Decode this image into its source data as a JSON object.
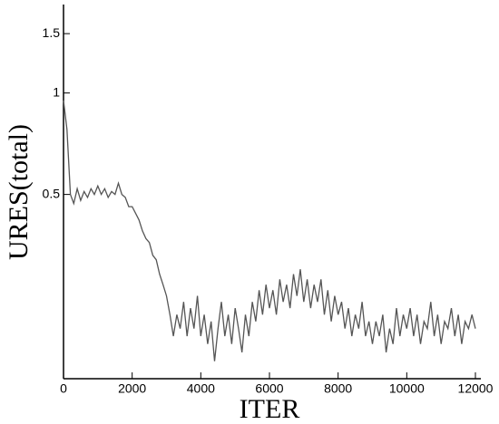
{
  "chart_data": {
    "type": "line",
    "x_label": "ITER",
    "y_label": "URES(total)",
    "xlim": [
      0,
      12000
    ],
    "xticks": [
      0,
      2000,
      4000,
      6000,
      8000,
      10000,
      12000
    ],
    "ylim": [
      0.142,
      1.83
    ],
    "yticks": [
      0.5,
      1,
      1.5
    ],
    "ylog": true,
    "color": "#555555",
    "x": [
      0,
      100,
      200,
      300,
      400,
      500,
      600,
      700,
      800,
      900,
      1000,
      1100,
      1200,
      1300,
      1400,
      1500,
      1600,
      1700,
      1800,
      1900,
      2000,
      2100,
      2200,
      2300,
      2400,
      2500,
      2600,
      2700,
      2800,
      2900,
      3000,
      3100,
      3200,
      3300,
      3400,
      3500,
      3600,
      3700,
      3800,
      3900,
      4000,
      4100,
      4200,
      4300,
      4400,
      4500,
      4600,
      4700,
      4800,
      4900,
      5000,
      5100,
      5200,
      5300,
      5400,
      5500,
      5600,
      5700,
      5800,
      5900,
      6000,
      6100,
      6200,
      6300,
      6400,
      6500,
      6600,
      6700,
      6800,
      6900,
      7000,
      7100,
      7200,
      7300,
      7400,
      7500,
      7600,
      7700,
      7800,
      7900,
      8000,
      8100,
      8200,
      8300,
      8400,
      8500,
      8600,
      8700,
      8800,
      8900,
      9000,
      9100,
      9200,
      9300,
      9400,
      9500,
      9600,
      9700,
      9800,
      9900,
      10000,
      10100,
      10200,
      10300,
      10400,
      10500,
      10600,
      10700,
      10800,
      10900,
      11000,
      11100,
      11200,
      11300,
      11400,
      11500,
      11600,
      11700,
      11800,
      11900,
      12000
    ],
    "values": [
      0.95,
      0.78,
      0.5,
      0.47,
      0.52,
      0.48,
      0.51,
      0.49,
      0.52,
      0.5,
      0.53,
      0.5,
      0.52,
      0.49,
      0.51,
      0.5,
      0.54,
      0.5,
      0.49,
      0.46,
      0.46,
      0.44,
      0.42,
      0.39,
      0.37,
      0.36,
      0.33,
      0.32,
      0.29,
      0.27,
      0.25,
      0.22,
      0.19,
      0.22,
      0.2,
      0.24,
      0.19,
      0.23,
      0.2,
      0.25,
      0.19,
      0.22,
      0.18,
      0.21,
      0.16,
      0.2,
      0.24,
      0.19,
      0.22,
      0.18,
      0.23,
      0.2,
      0.17,
      0.22,
      0.19,
      0.24,
      0.21,
      0.26,
      0.22,
      0.27,
      0.23,
      0.26,
      0.22,
      0.28,
      0.24,
      0.27,
      0.23,
      0.29,
      0.25,
      0.3,
      0.24,
      0.28,
      0.23,
      0.27,
      0.24,
      0.28,
      0.22,
      0.26,
      0.21,
      0.25,
      0.22,
      0.24,
      0.2,
      0.23,
      0.19,
      0.22,
      0.2,
      0.24,
      0.19,
      0.21,
      0.18,
      0.21,
      0.19,
      0.22,
      0.17,
      0.2,
      0.18,
      0.23,
      0.19,
      0.22,
      0.2,
      0.23,
      0.19,
      0.22,
      0.18,
      0.21,
      0.2,
      0.24,
      0.19,
      0.22,
      0.18,
      0.21,
      0.2,
      0.23,
      0.19,
      0.22,
      0.18,
      0.21,
      0.2,
      0.22,
      0.2
    ]
  }
}
